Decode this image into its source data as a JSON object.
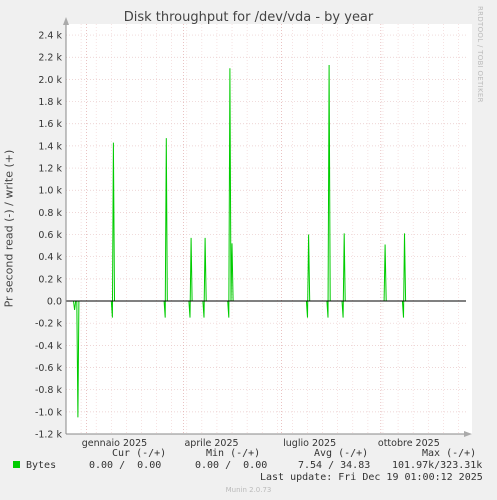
{
  "chart_data": {
    "type": "line",
    "title": "Disk throughput for /dev/vda - by year",
    "ylabel": "Pr second read (-) / write (+)",
    "ylim": [
      -1200,
      2500
    ],
    "y_ticks": [
      -1200,
      -1000,
      -800,
      -600,
      -400,
      -200,
      0,
      200,
      400,
      600,
      800,
      1000,
      1200,
      1400,
      1600,
      1800,
      2000,
      2200,
      2400
    ],
    "y_tick_labels": [
      "-1.2 k",
      "-1.0 k",
      "-0.8 k",
      "-0.6 k",
      "-0.4 k",
      "-0.2 k",
      "0.0",
      "0.2 k",
      "0.4 k",
      "0.6 k",
      "0.8 k",
      "1.0 k",
      "1.2 k",
      "1.4 k",
      "1.6 k",
      "1.8 k",
      "2.0 k",
      "2.2 k",
      "2.4 k"
    ],
    "x_start": "2024-12-13",
    "x_end": "2025-12-19",
    "x_tick_labels": [
      {
        "date": "2025-01-01",
        "label": "gennaio 2025"
      },
      {
        "date": "2025-04-01",
        "label": "aprile 2025"
      },
      {
        "date": "2025-07-01",
        "label": "luglio 2025"
      },
      {
        "date": "2025-10-01",
        "label": "ottobre 2025"
      }
    ],
    "series": [
      {
        "name": "Bytes",
        "color": "#00cc00",
        "points": [
          [
            "2024-12-13",
            0
          ],
          [
            "2024-12-20",
            0
          ],
          [
            "2024-12-21",
            -80
          ],
          [
            "2024-12-22",
            0
          ],
          [
            "2024-12-23",
            0
          ],
          [
            "2024-12-24",
            -1050
          ],
          [
            "2024-12-25",
            0
          ],
          [
            "2025-01-24",
            0
          ],
          [
            "2025-01-25",
            -150
          ],
          [
            "2025-01-26",
            1430
          ],
          [
            "2025-01-27",
            0
          ],
          [
            "2025-03-14",
            0
          ],
          [
            "2025-03-15",
            -150
          ],
          [
            "2025-03-16",
            1470
          ],
          [
            "2025-03-17",
            0
          ],
          [
            "2025-04-06",
            0
          ],
          [
            "2025-04-07",
            -150
          ],
          [
            "2025-04-08",
            570
          ],
          [
            "2025-04-09",
            0
          ],
          [
            "2025-04-19",
            0
          ],
          [
            "2025-04-20",
            -150
          ],
          [
            "2025-04-21",
            570
          ],
          [
            "2025-04-22",
            0
          ],
          [
            "2025-05-12",
            0
          ],
          [
            "2025-05-13",
            -150
          ],
          [
            "2025-05-14",
            2100
          ],
          [
            "2025-05-15",
            0
          ],
          [
            "2025-05-16",
            520
          ],
          [
            "2025-05-17",
            0
          ],
          [
            "2025-07-24",
            0
          ],
          [
            "2025-07-25",
            -150
          ],
          [
            "2025-07-26",
            600
          ],
          [
            "2025-07-27",
            0
          ],
          [
            "2025-08-12",
            0
          ],
          [
            "2025-08-13",
            -150
          ],
          [
            "2025-08-14",
            2130
          ],
          [
            "2025-08-15",
            0
          ],
          [
            "2025-08-26",
            0
          ],
          [
            "2025-08-27",
            -150
          ],
          [
            "2025-08-28",
            610
          ],
          [
            "2025-08-29",
            0
          ],
          [
            "2025-10-04",
            0
          ],
          [
            "2025-10-05",
            510
          ],
          [
            "2025-10-06",
            0
          ],
          [
            "2025-10-21",
            0
          ],
          [
            "2025-10-22",
            -150
          ],
          [
            "2025-10-23",
            610
          ],
          [
            "2025-10-24",
            0
          ],
          [
            "2025-12-19",
            0
          ]
        ]
      }
    ],
    "grid": true
  },
  "legend": {
    "header": "             Cur (-/+)          Min (-/+)          Avg (-/+)          Max (-/+)",
    "series_name": "Bytes",
    "cur": "0.00 /  0.00",
    "min": "0.00 /  0.00",
    "avg": "7.54 / 34.83",
    "max": "101.97k/323.31k",
    "header_cur": "Cur (-/+)",
    "header_min": "Min (-/+)",
    "header_avg": "Avg (-/+)",
    "header_max": "Max (-/+)",
    "last_update": "Last update: Fri Dec 19 01:00:12 2025"
  },
  "side_text": "RRDTOOL / TOBI OETIKER",
  "credit": "Munin 2.0.73"
}
